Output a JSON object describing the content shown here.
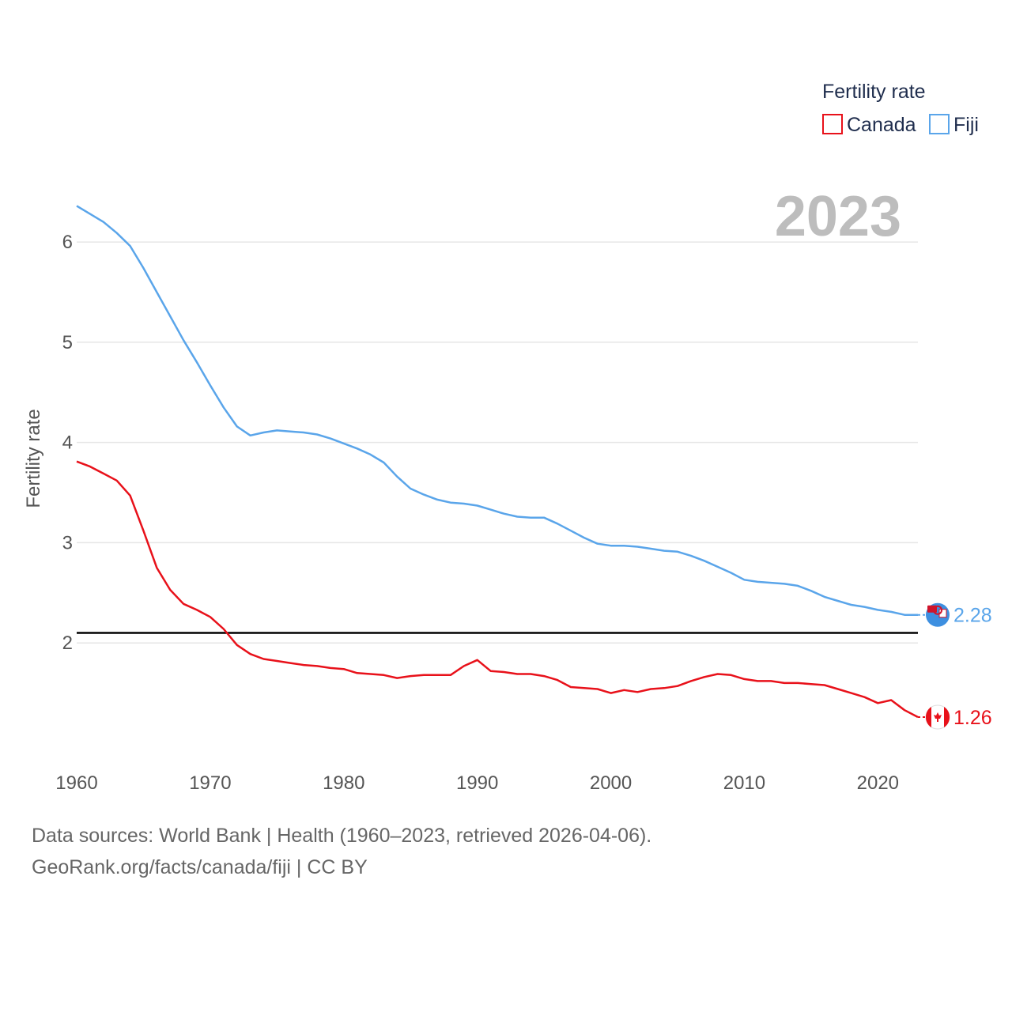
{
  "chart_data": {
    "type": "line",
    "legend_title": "Fertility rate",
    "ylabel": "Fertility rate",
    "xlabel": "",
    "year_label": "2023",
    "xlim": [
      1960,
      2023
    ],
    "ylim": [
      1.0,
      6.6
    ],
    "x_ticks": [
      1960,
      1970,
      1980,
      1990,
      2000,
      2010,
      2020
    ],
    "y_ticks": [
      2,
      3,
      4,
      5,
      6
    ],
    "reference_line": 2.1,
    "x": [
      1960,
      1961,
      1962,
      1963,
      1964,
      1965,
      1966,
      1967,
      1968,
      1969,
      1970,
      1971,
      1972,
      1973,
      1974,
      1975,
      1976,
      1977,
      1978,
      1979,
      1980,
      1981,
      1982,
      1983,
      1984,
      1985,
      1986,
      1987,
      1988,
      1989,
      1990,
      1991,
      1992,
      1993,
      1994,
      1995,
      1996,
      1997,
      1998,
      1999,
      2000,
      2001,
      2002,
      2003,
      2004,
      2005,
      2006,
      2007,
      2008,
      2009,
      2010,
      2011,
      2012,
      2013,
      2014,
      2015,
      2016,
      2017,
      2018,
      2019,
      2020,
      2021,
      2022,
      2023
    ],
    "series": [
      {
        "name": "Canada",
        "color": "#e8111a",
        "end_label": "1.26",
        "flag": "canada-flag-icon",
        "values": [
          3.81,
          3.76,
          3.69,
          3.62,
          3.47,
          3.12,
          2.75,
          2.53,
          2.39,
          2.33,
          2.26,
          2.14,
          1.98,
          1.89,
          1.84,
          1.82,
          1.8,
          1.78,
          1.77,
          1.75,
          1.74,
          1.7,
          1.69,
          1.68,
          1.65,
          1.67,
          1.68,
          1.68,
          1.68,
          1.77,
          1.83,
          1.72,
          1.71,
          1.69,
          1.69,
          1.67,
          1.63,
          1.56,
          1.55,
          1.54,
          1.5,
          1.53,
          1.51,
          1.54,
          1.55,
          1.57,
          1.62,
          1.66,
          1.69,
          1.68,
          1.64,
          1.62,
          1.62,
          1.6,
          1.6,
          1.59,
          1.58,
          1.54,
          1.5,
          1.46,
          1.4,
          1.43,
          1.33,
          1.26
        ]
      },
      {
        "name": "Fiji",
        "color": "#5aa5ea",
        "end_label": "2.28",
        "flag": "fiji-flag-icon",
        "values": [
          6.36,
          6.28,
          6.2,
          6.09,
          5.96,
          5.74,
          5.5,
          5.26,
          5.02,
          4.8,
          4.57,
          4.35,
          4.16,
          4.07,
          4.1,
          4.12,
          4.11,
          4.1,
          4.08,
          4.04,
          3.99,
          3.94,
          3.88,
          3.8,
          3.66,
          3.54,
          3.48,
          3.43,
          3.4,
          3.39,
          3.37,
          3.33,
          3.29,
          3.26,
          3.25,
          3.25,
          3.19,
          3.12,
          3.05,
          2.99,
          2.97,
          2.97,
          2.96,
          2.94,
          2.92,
          2.91,
          2.87,
          2.82,
          2.76,
          2.7,
          2.63,
          2.61,
          2.6,
          2.59,
          2.57,
          2.52,
          2.46,
          2.42,
          2.38,
          2.36,
          2.33,
          2.31,
          2.28,
          2.28
        ]
      }
    ]
  },
  "source": {
    "line1": "Data sources: World Bank | Health (1960–2023, retrieved 2026-04-06).",
    "line2": "GeoRank.org/facts/canada/fiji | CC BY"
  }
}
